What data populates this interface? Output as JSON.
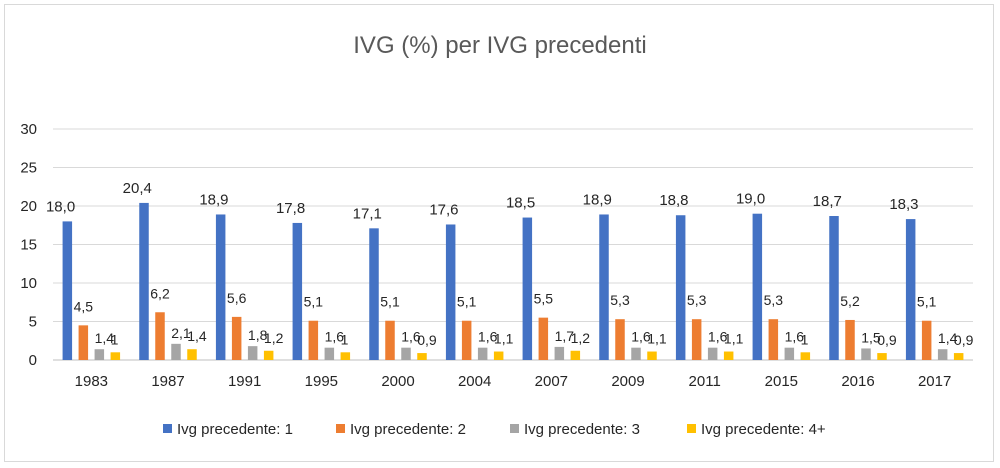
{
  "chart_data": {
    "type": "bar",
    "title": "IVG (%) per IVG precedenti",
    "xlabel": "",
    "ylabel": "",
    "categories": [
      "1983",
      "1987",
      "1991",
      "1995",
      "2000",
      "2004",
      "2007",
      "2009",
      "2011",
      "2015",
      "2016",
      "2017"
    ],
    "ylim": [
      0,
      30
    ],
    "yticks": [
      "0",
      "5",
      "10",
      "15",
      "20",
      "25",
      "30"
    ],
    "grid": true,
    "legend_position": "bottom",
    "series": [
      {
        "name": "Ivg precedente: 1",
        "color": "#4472C4",
        "values": [
          18.0,
          20.4,
          18.9,
          17.8,
          17.1,
          17.6,
          18.5,
          18.9,
          18.8,
          19.0,
          18.7,
          18.3
        ],
        "labels": [
          "18,0",
          "20,4",
          "18,9",
          "17,8",
          "17,1",
          "17,6",
          "18,5",
          "18,9",
          "18,8",
          "19,0",
          "18,7",
          "18,3"
        ]
      },
      {
        "name": "Ivg precedente: 2",
        "color": "#ED7D31",
        "values": [
          4.5,
          6.2,
          5.6,
          5.1,
          5.1,
          5.1,
          5.5,
          5.3,
          5.3,
          5.3,
          5.2,
          5.1
        ],
        "labels": [
          "4,5",
          "6,2",
          "5,6",
          "5,1",
          "5,1",
          "5,1",
          "5,5",
          "5,3",
          "5,3",
          "5,3",
          "5,2",
          "5,1"
        ]
      },
      {
        "name": "Ivg precedente: 3",
        "color": "#A5A5A5",
        "values": [
          1.4,
          2.1,
          1.8,
          1.6,
          1.6,
          1.6,
          1.7,
          1.6,
          1.6,
          1.6,
          1.5,
          1.4
        ],
        "labels": [
          "1,4",
          "2,1",
          "1,8",
          "1,6",
          "1,6",
          "1,6",
          "1,7",
          "1,6",
          "1,6",
          "1,6",
          "1,5",
          "1,4"
        ]
      },
      {
        "name": "Ivg precedente: 4+",
        "color": "#FFC000",
        "values": [
          1.0,
          1.4,
          1.2,
          1.0,
          0.9,
          1.1,
          1.2,
          1.1,
          1.1,
          1.0,
          0.9,
          0.9
        ],
        "labels": [
          "1",
          "1,4",
          "1,2",
          "1",
          "0,9",
          "1,1",
          "1,2",
          "1,1",
          "1,1",
          "1",
          "0,9",
          "0,9"
        ]
      }
    ]
  }
}
